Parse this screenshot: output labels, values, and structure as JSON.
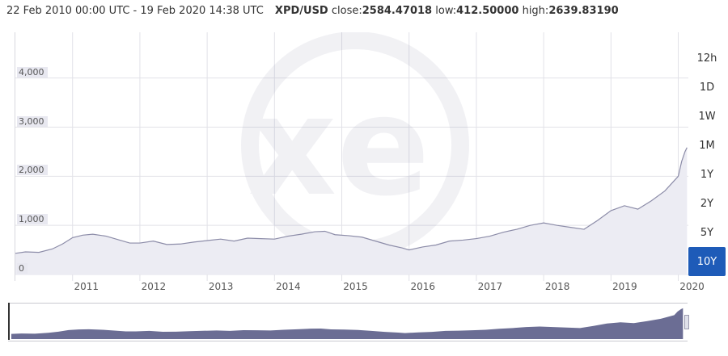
{
  "header": {
    "date_range": "22 Feb 2010 00:00 UTC - 19 Feb 2020 14:38 UTC",
    "pair": "XPD/USD",
    "close_label": "close:",
    "close_value": "2584.47018",
    "low_label": "low:",
    "low_value": "412.50000",
    "high_label": "high:",
    "high_value": "2639.83190"
  },
  "range_buttons": [
    "12h",
    "1D",
    "1W",
    "1M",
    "1Y",
    "2Y",
    "5Y",
    "10Y"
  ],
  "active_range": "10Y",
  "colors": {
    "line": "#8c8ca8",
    "fill": "#ececf3",
    "accent": "#1e5bb8",
    "navigator_fill": "#6b6d94"
  },
  "watermark": "xe",
  "chart_data": {
    "type": "area",
    "ytick_labels": [
      "0",
      "1,000",
      "2,000",
      "3,000",
      "4,000"
    ],
    "ylim": [
      0,
      4800
    ],
    "xtick_labels": [
      "2011",
      "2012",
      "2013",
      "2014",
      "2015",
      "2016",
      "2017",
      "2018",
      "2019",
      "2020"
    ],
    "xlim": [
      2010.15,
      2020.15
    ],
    "series": [
      {
        "x": [
          2010.15,
          2010.3,
          2010.5,
          2010.7,
          2010.85,
          2011.0,
          2011.15,
          2011.3,
          2011.5,
          2011.7,
          2011.85,
          2012.0,
          2012.2,
          2012.4,
          2012.6,
          2012.8,
          2013.0,
          2013.2,
          2013.4,
          2013.6,
          2013.8,
          2014.0,
          2014.2,
          2014.4,
          2014.6,
          2014.75,
          2014.9,
          2015.1,
          2015.3,
          2015.5,
          2015.7,
          2015.9,
          2016.0,
          2016.2,
          2016.4,
          2016.6,
          2016.8,
          2017.0,
          2017.2,
          2017.4,
          2017.6,
          2017.8,
          2018.0,
          2018.2,
          2018.4,
          2018.6,
          2018.8,
          2019.0,
          2019.2,
          2019.4,
          2019.6,
          2019.8,
          2019.9,
          2020.0,
          2020.05,
          2020.1,
          2020.13
        ],
        "values": [
          430,
          460,
          450,
          520,
          620,
          750,
          800,
          820,
          780,
          700,
          640,
          640,
          680,
          610,
          620,
          660,
          690,
          720,
          680,
          740,
          730,
          720,
          780,
          820,
          870,
          880,
          810,
          790,
          760,
          680,
          600,
          540,
          500,
          560,
          600,
          680,
          700,
          730,
          780,
          860,
          920,
          1000,
          1050,
          1000,
          960,
          920,
          1100,
          1300,
          1400,
          1330,
          1500,
          1700,
          1850,
          2000,
          2300,
          2500,
          2584
        ]
      }
    ]
  }
}
